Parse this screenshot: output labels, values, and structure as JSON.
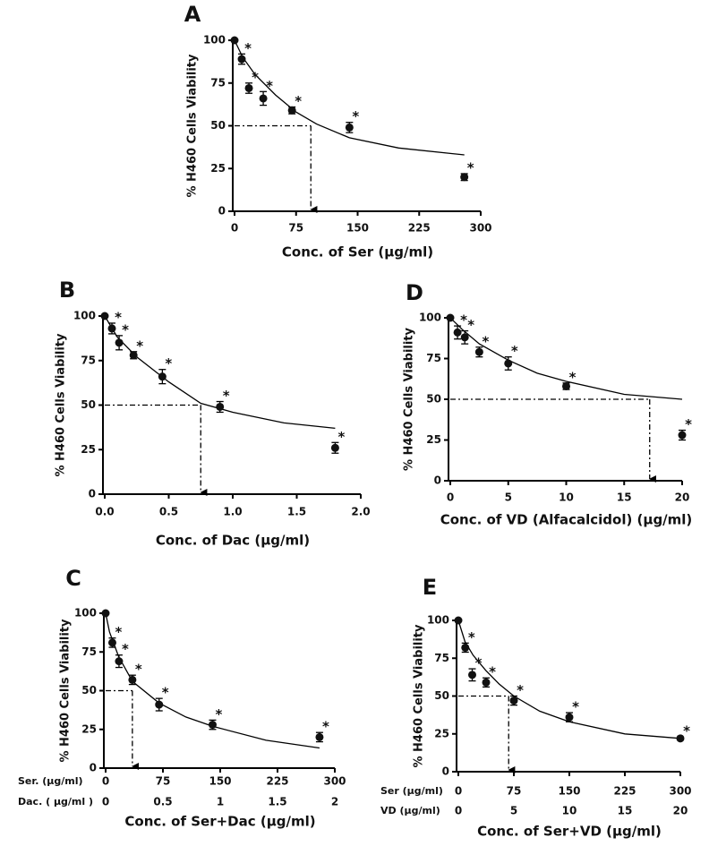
{
  "chart_data": [
    {
      "type": "scatter",
      "panel": "A",
      "y_label": "% H460 Cells Viability",
      "x_label": "Conc. of Ser (μg/ml)",
      "x": [
        0,
        8.75,
        17.5,
        35,
        70,
        140,
        280
      ],
      "values": [
        100,
        89,
        72,
        66,
        59,
        49,
        20
      ],
      "errors": [
        0,
        3,
        3,
        4,
        2,
        3,
        2
      ],
      "significance": [
        null,
        "*",
        "*",
        "*",
        "*",
        "*",
        "*"
      ],
      "curve": {
        "x": [
          0,
          10,
          25,
          50,
          75,
          100,
          140,
          200,
          280
        ],
        "values": [
          100,
          90,
          80,
          68,
          58,
          51,
          43,
          37,
          33
        ]
      },
      "ic50": 93,
      "xlim": [
        0,
        300
      ],
      "ylim": [
        0,
        100
      ],
      "xticks": [
        0,
        75,
        150,
        225,
        300
      ],
      "yticks": [
        0,
        25,
        50,
        75,
        100
      ]
    },
    {
      "type": "scatter",
      "panel": "B",
      "y_label": "% H460 Cells Viability",
      "x_label": "Conc. of Dac (μg/ml)",
      "x": [
        0,
        0.056,
        0.1125,
        0.225,
        0.45,
        0.9,
        1.8
      ],
      "values": [
        100,
        93,
        85,
        78,
        66,
        49,
        26
      ],
      "errors": [
        0,
        3,
        4,
        2,
        4,
        3,
        3
      ],
      "significance": [
        null,
        "*",
        "*",
        "*",
        "*",
        "*",
        "*"
      ],
      "curve": {
        "x": [
          0,
          0.1,
          0.25,
          0.5,
          0.75,
          1,
          1.4,
          1.8
        ],
        "values": [
          100,
          88,
          77,
          63,
          51,
          46,
          40,
          37
        ]
      },
      "ic50": 0.75,
      "xlim": [
        0,
        2
      ],
      "ylim": [
        0,
        100
      ],
      "xticks": [
        {
          "value": 0,
          "label": "0.0"
        },
        0.5,
        {
          "value": 1,
          "label": "1.0"
        },
        1.5,
        {
          "value": 2,
          "label": "2.0"
        }
      ],
      "yticks": [
        0,
        25,
        50,
        75,
        100
      ]
    },
    {
      "type": "scatter",
      "panel": "D",
      "y_label": "% H460 Cells Viability",
      "x_label": "Conc. of VD (Alfacalcidol) (μg/ml)",
      "x": [
        0,
        0.625,
        1.25,
        2.5,
        5,
        10,
        20
      ],
      "values": [
        100,
        91,
        88,
        79,
        72,
        58,
        28
      ],
      "errors": [
        0,
        4,
        4,
        3,
        4,
        2,
        3
      ],
      "significance": [
        null,
        "*",
        "*",
        "*",
        "*",
        "*",
        "*"
      ],
      "curve": {
        "x": [
          0,
          1,
          2.5,
          5,
          7.5,
          10,
          15,
          20
        ],
        "values": [
          100,
          93,
          84,
          74,
          66,
          61,
          53,
          50
        ]
      },
      "ic50": 17.2,
      "xlim": [
        0,
        20
      ],
      "ylim": [
        0,
        100
      ],
      "xticks": [
        0,
        5,
        10,
        15,
        20
      ],
      "yticks": [
        0,
        25,
        50,
        75,
        100
      ]
    },
    {
      "type": "scatter",
      "panel": "C",
      "y_label": "% H460 Cells Viability",
      "x_label": "Conc. of Ser+Dac (μg/ml)",
      "x": [
        0,
        8.75,
        17.5,
        35,
        70,
        140,
        280
      ],
      "values": [
        100,
        81,
        69,
        57,
        41,
        28,
        20
      ],
      "errors": [
        0,
        3,
        4,
        3,
        4,
        3,
        3
      ],
      "significance": [
        null,
        "*",
        "*",
        "*",
        "*",
        "*",
        "*"
      ],
      "curve": {
        "x": [
          0,
          5,
          17,
          35,
          70,
          105,
          140,
          210,
          280
        ],
        "values": [
          100,
          88,
          72,
          56,
          42,
          33,
          27,
          18,
          13
        ]
      },
      "ic50": 35,
      "xlim": [
        0,
        300
      ],
      "ylim": [
        0,
        100
      ],
      "xticks": [
        0,
        75,
        150,
        225,
        300
      ],
      "yticks": [
        0,
        25,
        50,
        75,
        100
      ],
      "xtick_title": "Ser. (μg/ml)",
      "x2tick_title": "Dac. ( μg/ml )",
      "x2lim": [
        0,
        2
      ],
      "x2ticks": [
        0,
        0.5,
        1,
        1.5,
        2
      ]
    },
    {
      "type": "scatter",
      "panel": "E",
      "y_label": "% H460 Cells Viability",
      "x_label": "Conc. of Ser+VD (μg/ml)",
      "x": [
        0,
        9.375,
        18.75,
        37.5,
        75,
        150,
        300
      ],
      "values": [
        100,
        82,
        64,
        59,
        47,
        36,
        22
      ],
      "errors": [
        0,
        3,
        4,
        3,
        3,
        3,
        1
      ],
      "significance": [
        null,
        "*",
        "*",
        "*",
        "*",
        "*",
        "*"
      ],
      "curve": {
        "x": [
          0,
          9,
          20,
          37,
          55,
          75,
          110,
          150,
          225,
          300
        ],
        "values": [
          100,
          86,
          77,
          67,
          58,
          50,
          40,
          33,
          25,
          22
        ]
      },
      "ic50": 68,
      "xlim": [
        0,
        300
      ],
      "ylim": [
        0,
        100
      ],
      "xticks": [
        0,
        75,
        150,
        225,
        300
      ],
      "yticks": [
        0,
        25,
        50,
        75,
        100
      ],
      "xtick_title": "Ser (μg/ml)",
      "x2tick_title": "VD (μg/ml)",
      "x2lim": [
        0,
        20
      ],
      "x2ticks": [
        0,
        5,
        10,
        15,
        20
      ]
    }
  ]
}
